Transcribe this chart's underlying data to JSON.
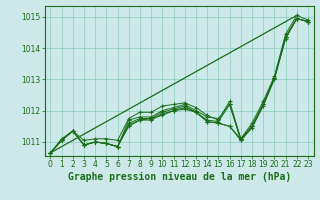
{
  "background_color": "#cde8e8",
  "grid_color": "#88ccbb",
  "line_color": "#1a6e1a",
  "marker_color": "#1a6e1a",
  "xlabel": "Graphe pression niveau de la mer (hPa)",
  "xlabel_fontsize": 7,
  "ylim": [
    1010.55,
    1015.35
  ],
  "xlim": [
    -0.5,
    23.5
  ],
  "yticks": [
    1011,
    1012,
    1013,
    1014,
    1015
  ],
  "xticks": [
    0,
    1,
    2,
    3,
    4,
    5,
    6,
    7,
    8,
    9,
    10,
    11,
    12,
    13,
    14,
    15,
    16,
    17,
    18,
    19,
    20,
    21,
    22,
    23
  ],
  "tick_fontsize": 5.5,
  "tick_color": "#1a6e1a",
  "axis_color": "#1a6e1a",
  "series": [
    [
      1010.65,
      1011.05,
      1011.35,
      1010.9,
      1011.0,
      1010.95,
      1010.85,
      1011.5,
      1011.7,
      1011.75,
      1011.85,
      1012.0,
      1012.05,
      1011.95,
      1011.65,
      1011.6,
      1011.5,
      1011.1,
      1011.5,
      1012.2,
      1013.05,
      1014.35,
      1014.95,
      1014.85
    ],
    [
      1010.65,
      1011.05,
      1011.35,
      1010.9,
      1011.0,
      1010.95,
      1010.85,
      1011.6,
      1011.75,
      1011.75,
      1011.95,
      1012.05,
      1012.15,
      1011.95,
      1011.7,
      1011.65,
      1012.2,
      1011.1,
      1011.5,
      1012.2,
      1013.05,
      1014.35,
      1014.95,
      1014.85
    ],
    [
      1010.65,
      1011.05,
      1011.35,
      1010.9,
      1011.0,
      1010.95,
      1010.85,
      1011.55,
      1011.7,
      1011.7,
      1011.9,
      1012.0,
      1012.1,
      1011.95,
      1011.65,
      1011.6,
      1011.5,
      1011.05,
      1011.45,
      1012.15,
      1013.0,
      1014.3,
      1014.95,
      1014.85
    ],
    [
      1010.65,
      1011.05,
      1011.35,
      1010.9,
      1011.0,
      1010.95,
      1010.85,
      1011.7,
      1011.8,
      1011.8,
      1012.0,
      1012.1,
      1012.2,
      1012.0,
      1011.8,
      1011.75,
      1012.2,
      1011.05,
      1011.5,
      1012.2,
      1013.05,
      1014.35,
      1014.95,
      1014.85
    ],
    [
      1010.65,
      1011.1,
      1011.35,
      1011.05,
      1011.1,
      1011.1,
      1011.05,
      1011.75,
      1011.95,
      1011.95,
      1012.15,
      1012.2,
      1012.25,
      1012.1,
      1011.85,
      1011.7,
      1012.3,
      1011.1,
      1011.6,
      1012.3,
      1013.1,
      1014.45,
      1015.05,
      1014.9
    ]
  ],
  "series_straight": [
    1010.65,
    1015.05
  ]
}
